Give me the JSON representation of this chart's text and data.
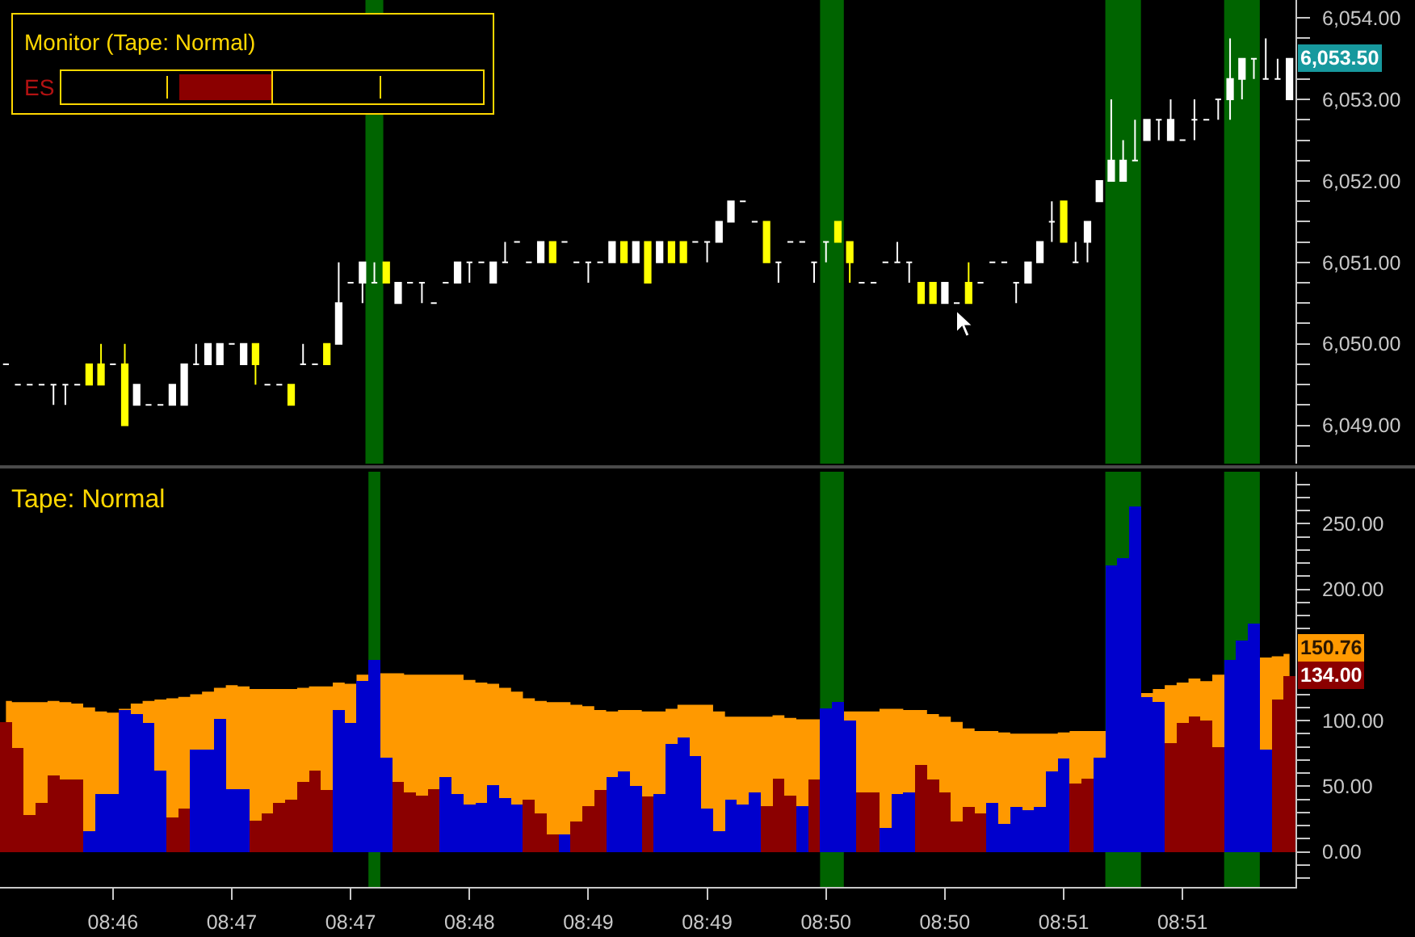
{
  "chart_data": [
    {
      "type": "candlestick",
      "title": "Monitor (Tape: Normal)",
      "annotations": [
        "ES",
        "6,053.50"
      ],
      "categories": [
        null,
        null,
        null,
        null,
        null,
        null,
        null,
        null,
        null,
        null,
        null,
        null,
        null,
        null,
        null,
        null,
        null,
        null,
        null,
        null,
        null,
        null,
        null,
        null,
        null,
        null,
        null,
        null,
        null,
        null,
        null,
        null,
        null,
        null,
        null,
        null,
        null,
        null,
        null,
        null,
        null,
        null,
        null,
        null,
        null,
        null,
        null,
        null,
        null,
        null,
        null,
        null,
        null,
        null,
        null,
        null,
        null,
        null,
        null,
        null,
        null,
        null,
        null,
        null,
        null,
        null,
        null,
        null,
        null,
        null,
        null,
        null,
        null,
        null,
        null,
        null,
        null,
        null,
        null,
        null,
        null,
        null,
        null,
        null,
        null,
        null,
        null,
        null,
        null,
        null,
        null,
        null,
        null,
        null,
        null,
        null,
        null,
        null,
        null,
        null,
        null,
        null,
        null,
        null,
        null,
        null,
        null,
        null,
        null
      ],
      "ohlc": [
        [
          6049.75,
          6049.75,
          6049.75,
          6049.75
        ],
        [
          6049.5,
          6049.5,
          6049.5,
          6049.5
        ],
        [
          6049.5,
          6049.5,
          6049.5,
          6049.5
        ],
        [
          6049.5,
          6049.5,
          6049.5,
          6049.5
        ],
        [
          6049.5,
          6049.5,
          6049.25,
          6049.5
        ],
        [
          6049.5,
          6049.5,
          6049.25,
          6049.5
        ],
        [
          6049.5,
          6049.5,
          6049.5,
          6049.5
        ],
        [
          6049.75,
          6049.75,
          6049.5,
          6049.5
        ],
        [
          6049.75,
          6050,
          6049.5,
          6049.5
        ],
        [
          6049.75,
          6049.75,
          6049.75,
          6049.75
        ],
        [
          6049.75,
          6050,
          6049,
          6049
        ],
        [
          6049.25,
          6049.5,
          6049.25,
          6049.5
        ],
        [
          6049.25,
          6049.25,
          6049.25,
          6049.25
        ],
        [
          6049.25,
          6049.25,
          6049.25,
          6049.25
        ],
        [
          6049.25,
          6049.5,
          6049.25,
          6049.5
        ],
        [
          6049.25,
          6049.75,
          6049.25,
          6049.75
        ],
        [
          6049.75,
          6050,
          6049.75,
          6049.75
        ],
        [
          6049.75,
          6050,
          6049.75,
          6050
        ],
        [
          6049.75,
          6050,
          6049.75,
          6050
        ],
        [
          6050,
          6050,
          6050,
          6050
        ],
        [
          6049.75,
          6050,
          6049.75,
          6050
        ],
        [
          6050,
          6050,
          6049.5,
          6049.75
        ],
        [
          6049.5,
          6049.5,
          6049.5,
          6049.5
        ],
        [
          6049.5,
          6049.5,
          6049.5,
          6049.5
        ],
        [
          6049.5,
          6049.5,
          6049.25,
          6049.25
        ],
        [
          6049.75,
          6050,
          6049.75,
          6049.75
        ],
        [
          6049.75,
          6049.75,
          6049.75,
          6049.75
        ],
        [
          6050,
          6050,
          6049.75,
          6049.75
        ],
        [
          6050,
          6051,
          6050,
          6050.5
        ],
        [
          6050.75,
          6050.75,
          6050.75,
          6050.75
        ],
        [
          6050.75,
          6051,
          6050.5,
          6051
        ],
        [
          6050.75,
          6051,
          6050.75,
          6050.75
        ],
        [
          6051,
          6051,
          6050.75,
          6050.75
        ],
        [
          6050.5,
          6050.75,
          6050.5,
          6050.75
        ],
        [
          6050.75,
          6050.75,
          6050.75,
          6050.75
        ],
        [
          6050.75,
          6050.75,
          6050.5,
          6050.75
        ],
        [
          6050.5,
          6050.5,
          6050.5,
          6050.5
        ],
        [
          6050.75,
          6050.75,
          6050.75,
          6050.75
        ],
        [
          6050.75,
          6051,
          6050.75,
          6051
        ],
        [
          6051,
          6051,
          6050.75,
          6051
        ],
        [
          6051,
          6051,
          6051,
          6051
        ],
        [
          6050.75,
          6051,
          6050.75,
          6051
        ],
        [
          6051,
          6051.25,
          6051,
          6051
        ],
        [
          6051.25,
          6051.25,
          6051.25,
          6051.25
        ],
        [
          6051,
          6051,
          6051,
          6051
        ],
        [
          6051,
          6051.25,
          6051,
          6051.25
        ],
        [
          6051.25,
          6051.25,
          6051,
          6051
        ],
        [
          6051.25,
          6051.25,
          6051.25,
          6051.25
        ],
        [
          6051,
          6051,
          6051,
          6051
        ],
        [
          6051,
          6051,
          6050.75,
          6051
        ],
        [
          6051,
          6051,
          6051,
          6051
        ],
        [
          6051,
          6051.25,
          6051,
          6051.25
        ],
        [
          6051.25,
          6051.25,
          6051,
          6051
        ],
        [
          6051,
          6051.25,
          6051,
          6051.25
        ],
        [
          6051.25,
          6051.25,
          6050.75,
          6050.75
        ],
        [
          6051,
          6051.25,
          6051,
          6051.25
        ],
        [
          6051.25,
          6051.25,
          6051,
          6051
        ],
        [
          6051.25,
          6051.25,
          6051,
          6051
        ],
        [
          6051.25,
          6051.25,
          6051.25,
          6051.25
        ],
        [
          6051.25,
          6051.25,
          6051,
          6051.25
        ],
        [
          6051.25,
          6051.5,
          6051.25,
          6051.5
        ],
        [
          6051.5,
          6051.75,
          6051.5,
          6051.75
        ],
        [
          6051.75,
          6051.75,
          6051.75,
          6051.75
        ],
        [
          6051.5,
          6051.5,
          6051.5,
          6051.5
        ],
        [
          6051.5,
          6051.5,
          6051,
          6051
        ],
        [
          6051,
          6051,
          6050.75,
          6051
        ],
        [
          6051.25,
          6051.25,
          6051.25,
          6051.25
        ],
        [
          6051.25,
          6051.25,
          6051.25,
          6051.25
        ],
        [
          6051,
          6051,
          6050.75,
          6051
        ],
        [
          6051.25,
          6051.25,
          6051,
          6051.25
        ],
        [
          6051.5,
          6051.5,
          6051.25,
          6051.25
        ],
        [
          6051.25,
          6051.25,
          6050.75,
          6051
        ],
        [
          6050.75,
          6050.75,
          6050.75,
          6050.75
        ],
        [
          6050.75,
          6050.75,
          6050.75,
          6050.75
        ],
        [
          6051,
          6051,
          6051,
          6051
        ],
        [
          6051,
          6051.25,
          6051,
          6051
        ],
        [
          6051,
          6051,
          6050.75,
          6051
        ],
        [
          6050.75,
          6050.75,
          6050.5,
          6050.5
        ],
        [
          6050.75,
          6050.75,
          6050.5,
          6050.5
        ],
        [
          6050.5,
          6050.75,
          6050.5,
          6050.75
        ],
        [
          6050.5,
          6050.5,
          6050.5,
          6050.5
        ],
        [
          6050.75,
          6051,
          6050.5,
          6050.5
        ],
        [
          6050.75,
          6050.75,
          6050.75,
          6050.75
        ],
        [
          6051,
          6051,
          6051,
          6051
        ],
        [
          6051,
          6051,
          6051,
          6051
        ],
        [
          6050.75,
          6050.75,
          6050.5,
          6050.75
        ],
        [
          6050.75,
          6051,
          6050.75,
          6051
        ],
        [
          6051,
          6051.25,
          6051,
          6051.25
        ],
        [
          6051.5,
          6051.75,
          6051.25,
          6051.5
        ],
        [
          6051.75,
          6051.75,
          6051.25,
          6051.25
        ],
        [
          6051,
          6051.25,
          6051,
          6051
        ],
        [
          6051.25,
          6051.5,
          6051,
          6051.5
        ],
        [
          6051.75,
          6052,
          6051.75,
          6052
        ],
        [
          6052,
          6053,
          6052,
          6052.25
        ],
        [
          6052,
          6052.5,
          6052,
          6052.25
        ],
        [
          6052.25,
          6052.75,
          6052.25,
          6052.25
        ],
        [
          6052.5,
          6052.75,
          6052.5,
          6052.75
        ],
        [
          6052.75,
          6052.75,
          6052.5,
          6052.75
        ],
        [
          6052.5,
          6053,
          6052.5,
          6052.75
        ],
        [
          6052.5,
          6052.5,
          6052.5,
          6052.5
        ],
        [
          6052.75,
          6053,
          6052.5,
          6052.75
        ],
        [
          6052.75,
          6052.75,
          6052.75,
          6052.75
        ],
        [
          6053,
          6053,
          6052.75,
          6053
        ],
        [
          6053,
          6053.75,
          6052.75,
          6053.25
        ],
        [
          6053.25,
          6053.5,
          6053,
          6053.5
        ],
        [
          6053.5,
          6053.5,
          6053.25,
          6053.5
        ],
        [
          6053.25,
          6053.75,
          6053.25,
          6053.25
        ],
        [
          6053.25,
          6053.5,
          6053.25,
          6053.25
        ],
        [
          6053,
          6053.5,
          6053,
          6053.5
        ]
      ],
      "colors": [
        "#ffffff",
        "#ffffff",
        "#ffffff",
        "#ffffff",
        "#ffffff",
        "#ffffff",
        "#ffffff",
        "#ffff00",
        "#ffff00",
        "#ffffff",
        "#ffff00",
        "#ffffff",
        "#ffffff",
        "#ffffff",
        "#ffffff",
        "#ffffff",
        "#ffffff",
        "#ffffff",
        "#ffffff",
        "#ffffff",
        "#ffffff",
        "#ffff00",
        "#ffffff",
        "#ffffff",
        "#ffff00",
        "#ffffff",
        "#ffffff",
        "#ffff00",
        "#ffffff",
        "#ffffff",
        "#ffffff",
        "#ffffff",
        "#ffff00",
        "#ffffff",
        "#ffffff",
        "#ffffff",
        "#ffffff",
        "#ffffff",
        "#ffffff",
        "#ffffff",
        "#ffffff",
        "#ffffff",
        "#ffffff",
        "#ffffff",
        "#ffffff",
        "#ffffff",
        "#ffff00",
        "#ffffff",
        "#ffffff",
        "#ffffff",
        "#ffffff",
        "#ffffff",
        "#ffff00",
        "#ffffff",
        "#ffff00",
        "#ffffff",
        "#ffff00",
        "#ffff00",
        "#ffffff",
        "#ffffff",
        "#ffffff",
        "#ffffff",
        "#ffffff",
        "#ffffff",
        "#ffff00",
        "#ffffff",
        "#ffffff",
        "#ffffff",
        "#ffffff",
        "#ffffff",
        "#ffff00",
        "#ffff00",
        "#ffffff",
        "#ffffff",
        "#ffffff",
        "#ffffff",
        "#ffffff",
        "#ffff00",
        "#ffff00",
        "#ffffff",
        "#ffffff",
        "#ffff00",
        "#ffffff",
        "#ffffff",
        "#ffffff",
        "#ffffff",
        "#ffffff",
        "#ffffff",
        "#ffffff",
        "#ffff00",
        "#ffffff",
        "#ffffff",
        "#ffffff",
        "#ffffff",
        "#ffffff",
        "#ffffff",
        "#ffffff",
        "#ffffff",
        "#ffffff",
        "#ffffff",
        "#ffffff",
        "#ffffff",
        "#ffffff",
        "#ffffff",
        "#ffffff",
        "#ffffff",
        "#ffffff",
        "#ffffff",
        "#ffffff"
      ],
      "ylim": [
        6048.53,
        6054.22
      ],
      "yticks": [
        {
          "value": 6048.75,
          "label": null
        },
        {
          "value": 6049,
          "label": "6,049.00"
        },
        {
          "value": 6049.25,
          "label": null
        },
        {
          "value": 6049.5,
          "label": null
        },
        {
          "value": 6049.75,
          "label": null
        },
        {
          "value": 6050,
          "label": "6,050.00"
        },
        {
          "value": 6050.25,
          "label": null
        },
        {
          "value": 6050.5,
          "label": null
        },
        {
          "value": 6050.75,
          "label": null
        },
        {
          "value": 6051,
          "label": "6,051.00"
        },
        {
          "value": 6051.25,
          "label": null
        },
        {
          "value": 6051.5,
          "label": null
        },
        {
          "value": 6051.75,
          "label": null
        },
        {
          "value": 6052,
          "label": "6,052.00"
        },
        {
          "value": 6052.25,
          "label": null
        },
        {
          "value": 6052.5,
          "label": null
        },
        {
          "value": 6052.75,
          "label": null
        },
        {
          "value": 6053,
          "label": "6,053.00"
        },
        {
          "value": 6053.25,
          "label": null
        },
        {
          "value": 6053.75,
          "label": null
        },
        {
          "value": 6054,
          "label": "6,054.00"
        }
      ],
      "tick_labels": "y"
    },
    {
      "type": "bar",
      "title": "Tape: Normal",
      "annotations": [
        "134.00"
      ],
      "categories": [
        null,
        null,
        null,
        null,
        null,
        null,
        null,
        null,
        null,
        "08:46",
        null,
        null,
        null,
        null,
        null,
        null,
        null,
        null,
        null,
        "08:47",
        null,
        null,
        null,
        null,
        null,
        null,
        null,
        null,
        null,
        "08:47",
        null,
        null,
        null,
        null,
        null,
        null,
        null,
        null,
        null,
        "08:48",
        null,
        null,
        null,
        null,
        null,
        null,
        null,
        null,
        null,
        "08:49",
        null,
        null,
        null,
        null,
        null,
        null,
        null,
        null,
        null,
        "08:49",
        null,
        null,
        null,
        null,
        null,
        null,
        null,
        null,
        null,
        "08:50",
        null,
        null,
        null,
        null,
        null,
        null,
        null,
        null,
        null,
        "08:50",
        null,
        null,
        null,
        null,
        null,
        null,
        null,
        null,
        null,
        "08:51",
        null,
        null,
        null,
        null,
        null,
        null,
        null,
        null,
        null,
        "08:51",
        null,
        null,
        null,
        null,
        null,
        null,
        null,
        null,
        null
      ],
      "series": [
        {
          "type": "area",
          "color": "#ff9900",
          "values": [
            115,
            114,
            114,
            114,
            115,
            114,
            113,
            110,
            107,
            106,
            109,
            113,
            115,
            116,
            117,
            118,
            120,
            122,
            125,
            127,
            126,
            124,
            124,
            124,
            124,
            125,
            126,
            126,
            129,
            128,
            135,
            null,
            136,
            136,
            135,
            135,
            135,
            135,
            135,
            131,
            129,
            128,
            125,
            122,
            117,
            115,
            114,
            114,
            112,
            111,
            108,
            107,
            108,
            108,
            107,
            107,
            109,
            112,
            112,
            112,
            107,
            103,
            103,
            103,
            103,
            104,
            102,
            101,
            101,
            null,
            null,
            107,
            107,
            107,
            109,
            109,
            108,
            108,
            105,
            103,
            99,
            94,
            92,
            92,
            91,
            90,
            90,
            90,
            90,
            91,
            92,
            92,
            92,
            null,
            null,
            null,
            121,
            124,
            127,
            129,
            132,
            130,
            135,
            null,
            null,
            null,
            148,
            149,
            150.76
          ],
          "value_labels": [
            null,
            null,
            null,
            null,
            null,
            null,
            null,
            null,
            null,
            null,
            null,
            null,
            null,
            null,
            null,
            null,
            null,
            null,
            null,
            null,
            null,
            null,
            null,
            null,
            null,
            null,
            null,
            null,
            null,
            null,
            null,
            null,
            null,
            null,
            null,
            null,
            null,
            null,
            null,
            null,
            null,
            null,
            null,
            null,
            null,
            null,
            null,
            null,
            null,
            null,
            null,
            null,
            null,
            null,
            null,
            null,
            null,
            null,
            null,
            null,
            null,
            null,
            null,
            null,
            null,
            null,
            null,
            null,
            null,
            null,
            null,
            null,
            null,
            null,
            null,
            null,
            null,
            null,
            null,
            null,
            null,
            null,
            null,
            null,
            null,
            null,
            null,
            null,
            null,
            null,
            null,
            null,
            null,
            null,
            null,
            null,
            null,
            null,
            null,
            null,
            null,
            null,
            null,
            null,
            null,
            null,
            null,
            null,
            "150.76"
          ]
        },
        {
          "values": [
            99,
            79,
            28,
            37,
            58,
            55,
            55,
            16,
            44,
            44,
            108,
            105,
            98,
            62,
            26,
            33,
            78,
            78,
            101,
            48,
            48,
            24,
            29,
            37,
            40,
            53,
            62,
            47,
            108,
            98,
            130,
            146,
            72,
            53,
            45,
            43,
            48,
            57,
            44,
            36,
            37,
            51,
            41,
            36,
            40,
            29,
            13,
            13,
            23,
            35,
            47,
            57,
            61,
            50,
            42,
            44,
            82,
            87,
            73,
            33,
            16,
            40,
            36,
            45,
            35,
            56,
            43,
            35,
            55,
            109,
            114,
            100,
            45,
            45,
            18,
            44,
            45,
            66,
            55,
            45,
            23,
            34,
            29,
            37,
            21,
            34,
            32,
            34,
            61,
            71,
            52,
            56,
            72,
            218,
            224,
            263,
            118,
            114,
            83,
            98,
            103,
            100,
            80,
            146,
            161,
            174,
            78,
            116,
            134
          ],
          "colors": [
            "#8b0000",
            "#8b0000",
            "#8b0000",
            "#8b0000",
            "#8b0000",
            "#8b0000",
            "#8b0000",
            "#0000cd",
            "#0000cd",
            "#0000cd",
            "#0000cd",
            "#0000cd",
            "#0000cd",
            "#0000cd",
            "#8b0000",
            "#8b0000",
            "#0000cd",
            "#0000cd",
            "#0000cd",
            "#0000cd",
            "#0000cd",
            "#8b0000",
            "#8b0000",
            "#8b0000",
            "#8b0000",
            "#8b0000",
            "#8b0000",
            "#8b0000",
            "#0000cd",
            "#0000cd",
            "#0000cd",
            "#0000cd",
            "#0000cd",
            "#8b0000",
            "#8b0000",
            "#8b0000",
            "#8b0000",
            "#0000cd",
            "#0000cd",
            "#0000cd",
            "#0000cd",
            "#0000cd",
            "#0000cd",
            "#0000cd",
            "#8b0000",
            "#8b0000",
            "#8b0000",
            "#0000cd",
            "#8b0000",
            "#8b0000",
            "#8b0000",
            "#0000cd",
            "#0000cd",
            "#0000cd",
            "#8b0000",
            "#0000cd",
            "#0000cd",
            "#0000cd",
            "#0000cd",
            "#0000cd",
            "#0000cd",
            "#0000cd",
            "#0000cd",
            "#0000cd",
            "#8b0000",
            "#8b0000",
            "#8b0000",
            "#0000cd",
            "#8b0000",
            "#0000cd",
            "#0000cd",
            "#0000cd",
            "#8b0000",
            "#8b0000",
            "#0000cd",
            "#0000cd",
            "#0000cd",
            "#8b0000",
            "#8b0000",
            "#8b0000",
            "#8b0000",
            "#8b0000",
            "#8b0000",
            "#0000cd",
            "#0000cd",
            "#0000cd",
            "#0000cd",
            "#0000cd",
            "#0000cd",
            "#0000cd",
            "#8b0000",
            "#8b0000",
            "#0000cd",
            "#0000cd",
            "#0000cd",
            "#0000cd",
            "#0000cd",
            "#0000cd",
            "#8b0000",
            "#8b0000",
            "#8b0000",
            "#8b0000",
            "#8b0000",
            "#0000cd",
            "#0000cd",
            "#0000cd",
            "#0000cd",
            "#8b0000",
            "#8b0000"
          ]
        }
      ],
      "ylim": [
        -26.7,
        289.6
      ],
      "yticks": [
        {
          "value": -20,
          "label": null
        },
        {
          "value": -10,
          "label": null
        },
        {
          "value": 0,
          "label": "0.00"
        },
        {
          "value": 10,
          "label": null
        },
        {
          "value": 20,
          "label": null
        },
        {
          "value": 30,
          "label": null
        },
        {
          "value": 40,
          "label": null
        },
        {
          "value": 50,
          "label": "50.00"
        },
        {
          "value": 60,
          "label": null
        },
        {
          "value": 70,
          "label": null
        },
        {
          "value": 80,
          "label": null
        },
        {
          "value": 90,
          "label": null
        },
        {
          "value": 100,
          "label": "100.00"
        },
        {
          "value": 110,
          "label": null
        },
        {
          "value": 120,
          "label": null
        },
        {
          "value": 170,
          "label": null
        },
        {
          "value": 180,
          "label": null
        },
        {
          "value": 190,
          "label": null
        },
        {
          "value": 200,
          "label": "200.00"
        },
        {
          "value": 210,
          "label": null
        },
        {
          "value": 220,
          "label": null
        },
        {
          "value": 230,
          "label": null
        },
        {
          "value": 240,
          "label": null
        },
        {
          "value": 250,
          "label": "250.00"
        },
        {
          "value": 260,
          "label": null
        },
        {
          "value": 270,
          "label": null
        },
        {
          "value": 280,
          "label": null
        }
      ]
    }
  ]
}
